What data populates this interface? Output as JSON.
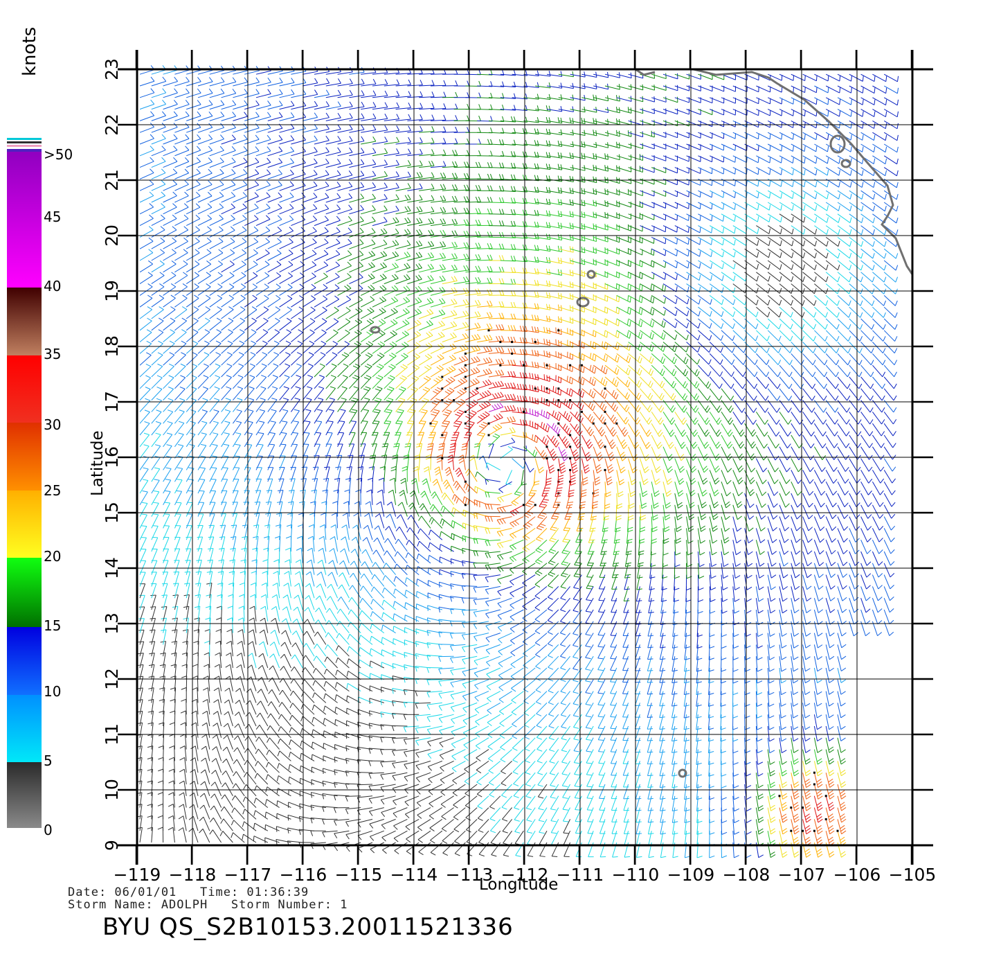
{
  "map": {
    "lon_range": [
      -119,
      -105
    ],
    "lat_range": [
      9,
      23
    ],
    "lon_ticks": [
      "−119",
      "−118",
      "−117",
      "−116",
      "−115",
      "−114",
      "−113",
      "−112",
      "−111",
      "−110",
      "−109",
      "−108",
      "−107",
      "−106",
      "−105"
    ],
    "lat_ticks": [
      "9",
      "10",
      "11",
      "12",
      "13",
      "14",
      "15",
      "16",
      "17",
      "18",
      "19",
      "20",
      "21",
      "22",
      "23"
    ],
    "xlabel": "Longitude",
    "ylabel": "Latitude",
    "storm_center": {
      "lon": -112.3,
      "lat": 16.0
    },
    "secondary_max": {
      "lon": -106.8,
      "lat": 9.7
    },
    "coastline_color": "#707070",
    "grid": true
  },
  "colorbar": {
    "unit": "knots",
    "labels": [
      "0",
      "5",
      "10",
      "15",
      "20",
      "25",
      "30",
      "35",
      "40",
      "45",
      ">50"
    ],
    "colors": {
      "0_5": [
        "#8a8a8a",
        "#2a2a2a"
      ],
      "5_10": [
        "#00e8f8",
        "#0090ff"
      ],
      "10_15": [
        "#1070ff",
        "#0000e0"
      ],
      "15_20": [
        "#007000",
        "#10ff10"
      ],
      "20_25": [
        "#ffff20",
        "#ffb000"
      ],
      "25_30": [
        "#ff9000",
        "#e03000"
      ],
      "30_35": [
        "#f03020",
        "#ff0000"
      ],
      "35_40": [
        "#c08060",
        "#400000"
      ],
      "40_50": [
        "#ff00ff",
        "#9000c0"
      ],
      "gt50": [
        "#5020c0"
      ]
    }
  },
  "info": {
    "line1": "Date: 06/01/01   Time: 01:36:39",
    "line2": "Storm Name: ADOLPH   Storm Number: 1",
    "ident": "BYU QS_S2B10153.20011521336"
  }
}
